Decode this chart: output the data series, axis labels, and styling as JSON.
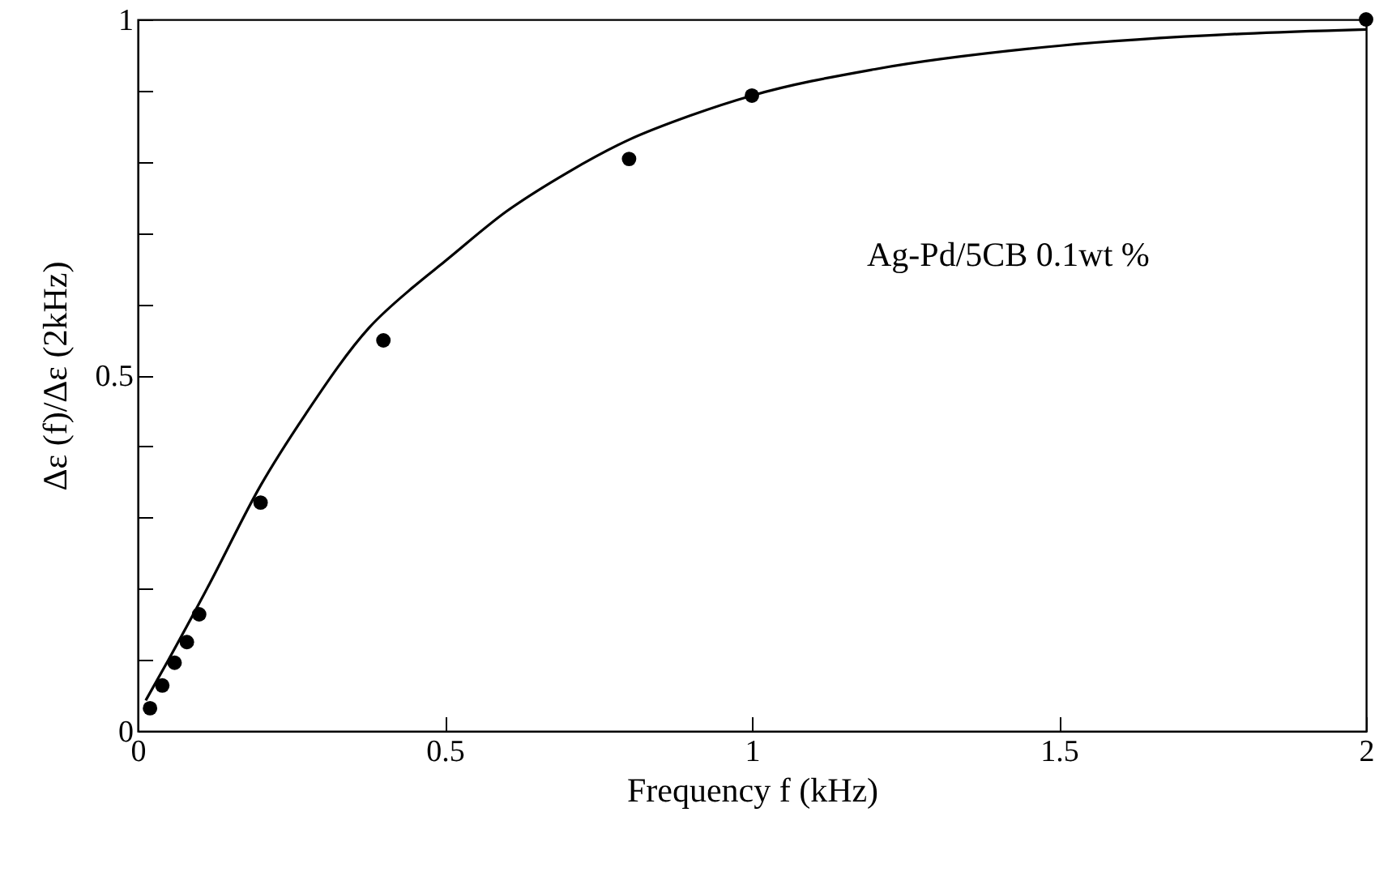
{
  "chart_data": {
    "type": "scatter",
    "xlabel": "Frequency f (kHz)",
    "ylabel": "Δε (f)/Δε (2kHz)",
    "annotations": [
      "Ag-Pd/5CB 0.1wt %"
    ],
    "x": [
      0.02,
      0.04,
      0.06,
      0.08,
      0.1,
      0.2,
      0.4,
      0.8,
      1.0,
      2.0
    ],
    "series": [
      {
        "marker": "circle",
        "color": "#000000",
        "values": [
          0.032,
          0.064,
          0.096,
          0.125,
          0.164,
          0.321,
          0.549,
          0.804,
          0.893,
          1.0
        ]
      },
      {
        "type": "line",
        "color": "#000000",
        "x": [
          0.013,
          0.05,
          0.117,
          0.2,
          0.273,
          0.377,
          0.45,
          0.5,
          0.6,
          0.7,
          0.8,
          0.9,
          1.0,
          1.2,
          1.5,
          1.8,
          2.0
        ],
        "values": [
          0.043,
          0.1,
          0.207,
          0.345,
          0.445,
          0.567,
          0.625,
          0.66,
          0.73,
          0.785,
          0.831,
          0.865,
          0.893,
          0.93,
          0.963,
          0.98,
          0.986
        ]
      }
    ],
    "xlim": [
      0,
      2
    ],
    "xticks": [
      0,
      0.5,
      1,
      1.5,
      2
    ],
    "ylim": [
      0,
      1
    ],
    "yticks": [
      0,
      {
        "value": 0.1,
        "label": null
      },
      {
        "value": 0.2,
        "label": null
      },
      {
        "value": 0.3,
        "label": null
      },
      {
        "value": 0.4,
        "label": null
      },
      0.5,
      {
        "value": 0.6,
        "label": null
      },
      {
        "value": 0.7,
        "label": null
      },
      {
        "value": 0.8,
        "label": null
      },
      {
        "value": 0.9,
        "label": null
      },
      1
    ]
  }
}
